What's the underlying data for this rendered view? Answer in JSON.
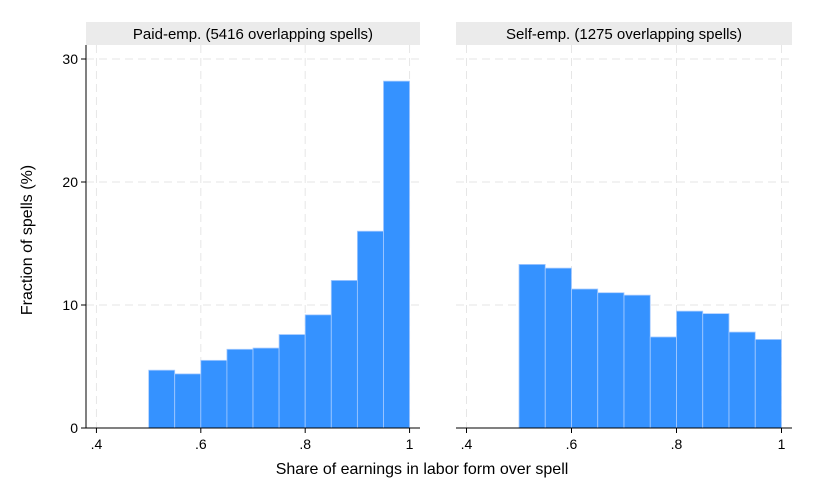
{
  "figure": {
    "ylabel": "Fraction of spells (%)",
    "xlabel": "Share of earnings in labor form over spell"
  },
  "colors": {
    "bar_fill": "#3592ff",
    "bar_edge": "#a9ccff",
    "panel_header": "#ebebeb",
    "grid": "#e6e6e6",
    "axis": "#000000"
  },
  "chart_data": [
    {
      "type": "bar",
      "title": "Paid-emp. (5416 overlapping spells)",
      "xlabel": "Share of earnings in labor form over spell",
      "ylabel": "Fraction of spells (%)",
      "bin_width": 0.05,
      "bins_start": [
        0.5,
        0.55,
        0.6,
        0.65,
        0.7,
        0.75,
        0.8,
        0.85,
        0.9,
        0.95
      ],
      "values": [
        4.7,
        4.4,
        5.5,
        6.4,
        6.5,
        7.6,
        9.2,
        12.0,
        16.0,
        28.2
      ],
      "xlim": [
        0.38,
        1.02
      ],
      "ylim": [
        0,
        30
      ],
      "xticks": [
        0.4,
        0.6,
        0.8,
        1.0
      ],
      "xtick_labels": [
        ".4",
        ".6",
        ".8",
        "1"
      ],
      "yticks": [
        0,
        10,
        20,
        30
      ],
      "ytick_labels": [
        "0",
        "10",
        "20",
        "30"
      ],
      "grid": true
    },
    {
      "type": "bar",
      "title": "Self-emp. (1275 overlapping spells)",
      "xlabel": "Share of earnings in labor form over spell",
      "ylabel": "Fraction of spells (%)",
      "bin_width": 0.05,
      "bins_start": [
        0.5,
        0.55,
        0.6,
        0.65,
        0.7,
        0.75,
        0.8,
        0.85,
        0.9,
        0.95
      ],
      "values": [
        13.3,
        13.0,
        11.3,
        11.0,
        10.8,
        7.4,
        9.5,
        9.3,
        7.8,
        7.2
      ],
      "xlim": [
        0.38,
        1.02
      ],
      "ylim": [
        0,
        30
      ],
      "xticks": [
        0.4,
        0.6,
        0.8,
        1.0
      ],
      "xtick_labels": [
        ".4",
        ".6",
        ".8",
        "1"
      ],
      "grid": true
    }
  ]
}
